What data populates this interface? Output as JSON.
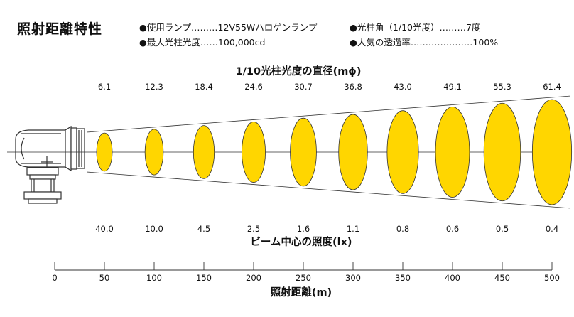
{
  "title": "照射距離特性",
  "specs": {
    "lamp": "●使用ランプ………12V55Wハロゲンランプ",
    "angle": "●光柱角（1/10光度）………7度",
    "max_intensity": "●最大光柱光度……100,000cd",
    "transmittance": "●大気の透過率…………………100%"
  },
  "diameter_header": "1/10光柱光度の直径(mϕ)",
  "illuminance_header": "ビーム中心の照度(lx)",
  "distance_header": "照射距離(m)",
  "colors": {
    "beam_fill": "#ffd600",
    "line": "#333333"
  },
  "chart_data": {
    "type": "line",
    "distance_m": [
      50,
      100,
      150,
      200,
      250,
      300,
      350,
      400,
      450,
      500
    ],
    "diameter_labels": [
      "6.1",
      "12.3",
      "18.4",
      "24.6",
      "30.7",
      "36.8",
      "43.0",
      "49.1",
      "55.3",
      "61.4"
    ],
    "illuminance_labels": [
      "40.0",
      "10.0",
      "4.5",
      "2.5",
      "1.6",
      "1.1",
      "0.8",
      "0.6",
      "0.5",
      "0.4"
    ],
    "axis_ticks": [
      "0",
      "50",
      "100",
      "150",
      "200",
      "250",
      "300",
      "350",
      "400",
      "450",
      "500"
    ],
    "xlim": [
      0,
      500
    ]
  }
}
